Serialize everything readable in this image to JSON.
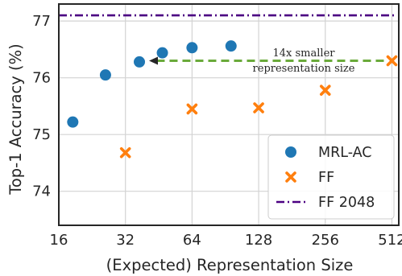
{
  "chart_data": {
    "type": "scatter",
    "title": "",
    "xlabel": "(Expected) Representation Size",
    "ylabel": "Top-1 Accuracy (%)",
    "xscale": "log2",
    "xlim": [
      16,
      550
    ],
    "ylim": [
      73.4,
      77.3
    ],
    "x_ticks": [
      16,
      32,
      64,
      128,
      256,
      512
    ],
    "x_tick_labels": [
      "16",
      "32",
      "64",
      "128",
      "256",
      "512"
    ],
    "y_ticks": [
      74,
      75,
      76,
      77
    ],
    "y_tick_labels": [
      "74",
      "75",
      "76",
      "77"
    ],
    "grid": true,
    "legend_position": "lower-right",
    "series": [
      {
        "name": "MRL-AC",
        "marker": "circle",
        "color": "#1f77b4",
        "points": [
          [
            18.5,
            75.22
          ],
          [
            26,
            76.05
          ],
          [
            37,
            76.28
          ],
          [
            47,
            76.44
          ],
          [
            64,
            76.53
          ],
          [
            96,
            76.56
          ]
        ]
      },
      {
        "name": "FF",
        "marker": "x",
        "color": "#ff7f0e",
        "points": [
          [
            32,
            74.68
          ],
          [
            64,
            75.45
          ],
          [
            128,
            75.47
          ],
          [
            256,
            75.78
          ],
          [
            512,
            76.3
          ]
        ]
      },
      {
        "name": "FF 2048",
        "type": "hline",
        "style": "dash-dot",
        "color": "#4b0082",
        "y": 77.1
      }
    ],
    "annotation": {
      "lines": [
        "14x smaller",
        "representation size"
      ],
      "arrow_from": [
        512,
        76.3
      ],
      "arrow_to": [
        37,
        76.3
      ],
      "arrow_color": "#6aaa3a",
      "arrow_style": "dashed"
    }
  }
}
